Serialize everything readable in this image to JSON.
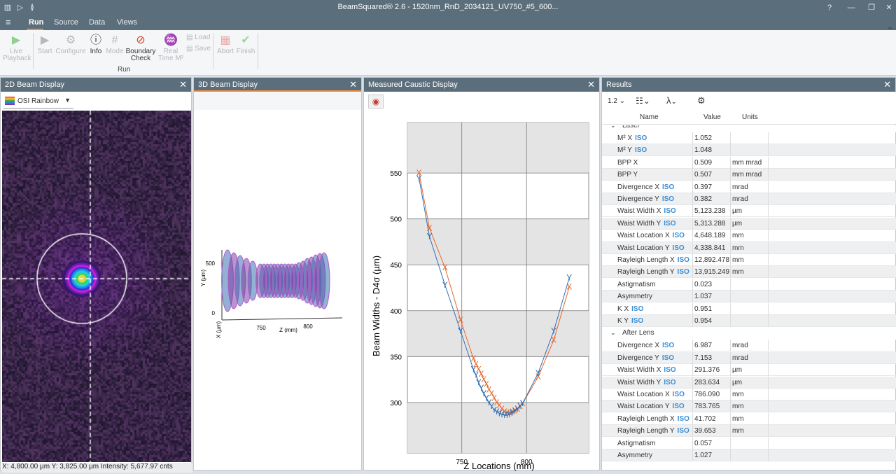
{
  "app": {
    "title": "BeamSquared® 2.6 - 1520nm_RnD_2034121_UV750_#5_600...",
    "menu": [
      "Run",
      "Source",
      "Data",
      "Views"
    ]
  },
  "ribbon": {
    "buttons": [
      {
        "label": "Live\nPlayback",
        "icon": "play-icon",
        "enabled": false
      },
      {
        "label": "Start",
        "icon": "start-icon",
        "enabled": false
      },
      {
        "label": "Configure",
        "icon": "configure-icon",
        "enabled": false
      },
      {
        "label": "Info",
        "icon": "info-icon",
        "enabled": true
      },
      {
        "label": "Mode",
        "icon": "mode-icon",
        "enabled": false
      },
      {
        "label": "Boundary\nCheck",
        "icon": "boundary-check-icon",
        "enabled": true
      },
      {
        "label": "Real\nTime M²",
        "icon": "real-time-icon",
        "enabled": false
      },
      {
        "label": "Load",
        "icon": "load-icon",
        "enabled": false
      },
      {
        "label": "Save",
        "icon": "save-icon",
        "enabled": false
      },
      {
        "label": "Abort",
        "icon": "abort-icon",
        "enabled": false
      },
      {
        "label": "Finish",
        "icon": "finish-icon",
        "enabled": false
      }
    ],
    "group_label": "Run"
  },
  "panels": {
    "beam2d": {
      "title": "2D Beam Display",
      "palette": "OSI Rainbow",
      "status": "X: 4,800.00 µm  Y: 3,825.00 µm  Intensity: 5,677.97 cnts"
    },
    "beam3d": {
      "title": "3D Beam Display",
      "y_label": "Y (µm)",
      "y_ticks": [
        "500",
        "0"
      ],
      "x_label": "Z (mm)",
      "x_ticks": [
        "750",
        "800"
      ],
      "z_label": "X (µm)"
    },
    "caustic": {
      "title": "Measured Caustic Display"
    },
    "results": {
      "title": "Results",
      "toolbar": {
        "zoom": "1.2"
      },
      "columns": [
        "Name",
        "Value",
        "Units"
      ],
      "sections": [
        {
          "name": "Laser",
          "rows": [
            {
              "name": "M² X",
              "iso": true,
              "value": "1.052",
              "units": ""
            },
            {
              "name": "M² Y",
              "iso": true,
              "value": "1.048",
              "units": ""
            },
            {
              "name": "BPP X",
              "iso": false,
              "value": "0.509",
              "units": "mm mrad"
            },
            {
              "name": "BPP Y",
              "iso": false,
              "value": "0.507",
              "units": "mm mrad"
            },
            {
              "name": "Divergence X",
              "iso": true,
              "value": "0.397",
              "units": "mrad"
            },
            {
              "name": "Divergence Y",
              "iso": true,
              "value": "0.382",
              "units": "mrad"
            },
            {
              "name": "Waist Width X",
              "iso": true,
              "value": "5,123.238",
              "units": "µm"
            },
            {
              "name": "Waist Width Y",
              "iso": true,
              "value": "5,313.288",
              "units": "µm"
            },
            {
              "name": "Waist Location X",
              "iso": true,
              "value": "4,648.189",
              "units": "mm"
            },
            {
              "name": "Waist Location Y",
              "iso": true,
              "value": "4,338.841",
              "units": "mm"
            },
            {
              "name": "Rayleigh Length X",
              "iso": true,
              "value": "12,892.478",
              "units": "mm"
            },
            {
              "name": "Rayleigh Length Y",
              "iso": true,
              "value": "13,915.249",
              "units": "mm"
            },
            {
              "name": "Astigmatism",
              "iso": false,
              "value": "0.023",
              "units": ""
            },
            {
              "name": "Asymmetry",
              "iso": false,
              "value": "1.037",
              "units": ""
            },
            {
              "name": "K X",
              "iso": true,
              "value": "0.951",
              "units": ""
            },
            {
              "name": "K Y",
              "iso": true,
              "value": "0.954",
              "units": ""
            }
          ]
        },
        {
          "name": "After Lens",
          "rows": [
            {
              "name": "Divergence X",
              "iso": true,
              "value": "6.987",
              "units": "mrad"
            },
            {
              "name": "Divergence Y",
              "iso": true,
              "value": "7.153",
              "units": "mrad"
            },
            {
              "name": "Waist Width X",
              "iso": true,
              "value": "291.376",
              "units": "µm"
            },
            {
              "name": "Waist Width Y",
              "iso": true,
              "value": "283.634",
              "units": "µm"
            },
            {
              "name": "Waist Location X",
              "iso": true,
              "value": "786.090",
              "units": "mm"
            },
            {
              "name": "Waist Location Y",
              "iso": true,
              "value": "783.765",
              "units": "mm"
            },
            {
              "name": "Rayleigh Length X",
              "iso": true,
              "value": "41.702",
              "units": "mm"
            },
            {
              "name": "Rayleigh Length Y",
              "iso": true,
              "value": "39.653",
              "units": "mm"
            },
            {
              "name": "Astigmatism",
              "iso": false,
              "value": "0.057",
              "units": ""
            },
            {
              "name": "Asymmetry",
              "iso": false,
              "value": "1.027",
              "units": ""
            }
          ]
        }
      ]
    }
  },
  "chart_data": {
    "type": "scatter",
    "xlabel": "Z Locations (mm)",
    "ylabel": "Beam Widths - D4σ (µm)",
    "xlim": [
      708,
      848
    ],
    "ylim": [
      245,
      605
    ],
    "x_ticks": [
      750,
      800
    ],
    "y_ticks": [
      300,
      350,
      400,
      450,
      500,
      550
    ],
    "grid": true,
    "series": [
      {
        "name": "X",
        "color": "#e8672a",
        "x": [
          717,
          725,
          737,
          749,
          759,
          761,
          763,
          765,
          767,
          769,
          771,
          773,
          775,
          777,
          779,
          781,
          783,
          785,
          787,
          789,
          791,
          793,
          795,
          797,
          809,
          821,
          833
        ],
        "values": [
          550,
          490,
          447,
          390,
          348,
          342,
          336,
          331,
          325,
          320,
          314,
          310,
          305,
          300,
          297,
          293,
          290,
          289,
          289,
          290,
          291,
          293,
          296,
          299,
          328,
          368,
          426
        ]
      },
      {
        "name": "Y",
        "color": "#2f6fb5",
        "x": [
          717,
          725,
          737,
          749,
          759,
          761,
          763,
          765,
          767,
          769,
          771,
          773,
          775,
          777,
          779,
          781,
          783,
          785,
          787,
          789,
          791,
          793,
          795,
          797,
          809,
          821,
          833
        ],
        "values": [
          544,
          481,
          428,
          378,
          336,
          330,
          322,
          316,
          310,
          305,
          300,
          296,
          292,
          290,
          288,
          287,
          286,
          286,
          287,
          289,
          291,
          293,
          296,
          299,
          332,
          378,
          436
        ]
      }
    ]
  }
}
